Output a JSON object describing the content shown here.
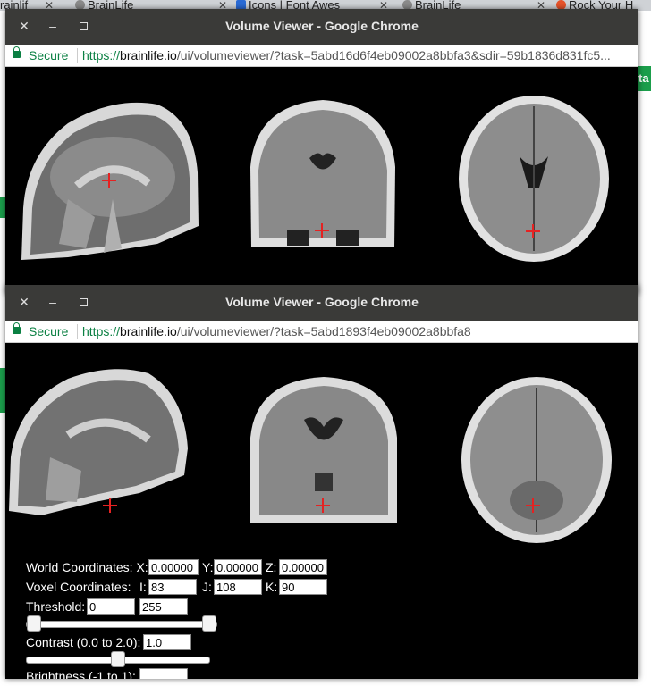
{
  "background_tabs": [
    {
      "label": "rainlif",
      "color": "#f0a23a"
    },
    {
      "label": "BrainLife",
      "color": "#8a8a8a"
    },
    {
      "label": "Icons | Font Awes",
      "color": "#2a6bd6"
    },
    {
      "label": "BrainLife",
      "color": "#8a8a8a"
    },
    {
      "label": "Rock Your H",
      "color": "#e6532a"
    }
  ],
  "background_page": {
    "button_fragment": "ta"
  },
  "window1": {
    "title": "Volume Viewer - Google Chrome",
    "secure_label": "Secure",
    "url_protocol": "https://",
    "url_host": "brainlife.io",
    "url_path": "/ui/volumeviewer/?task=5abd16d6f4eb09002a8bbfa3&sdir=59b1836d831fc5..."
  },
  "window2": {
    "title": "Volume Viewer - Google Chrome",
    "secure_label": "Secure",
    "url_protocol": "https://",
    "url_host": "brainlife.io",
    "url_path": "/ui/volumeviewer/?task=5abd1893f4eb09002a8bbfa8"
  },
  "controls": {
    "world_label": "World Coordinates: X:",
    "world_x": "0.00000",
    "y_label": "Y:",
    "world_y": "0.00000",
    "z_label": "Z:",
    "world_z": "0.00000",
    "voxel_label": "Voxel Coordinates:",
    "i_label": "I:",
    "voxel_i": "83",
    "j_label": "J:",
    "voxel_j": "108",
    "k_label": "K:",
    "voxel_k": "90",
    "threshold_label": "Threshold:",
    "threshold_min": "0",
    "threshold_max": "255",
    "threshold_range": [
      0,
      1
    ],
    "contrast_label": "Contrast (0.0 to 2.0):",
    "contrast_value": "1.0",
    "contrast_fraction": 0.5,
    "brightness_label": "Brightness (-1 to 1):"
  },
  "colors": {
    "crosshair": "#e52222",
    "secure_green": "#0b8043",
    "titlebar": "#3a3a38"
  }
}
